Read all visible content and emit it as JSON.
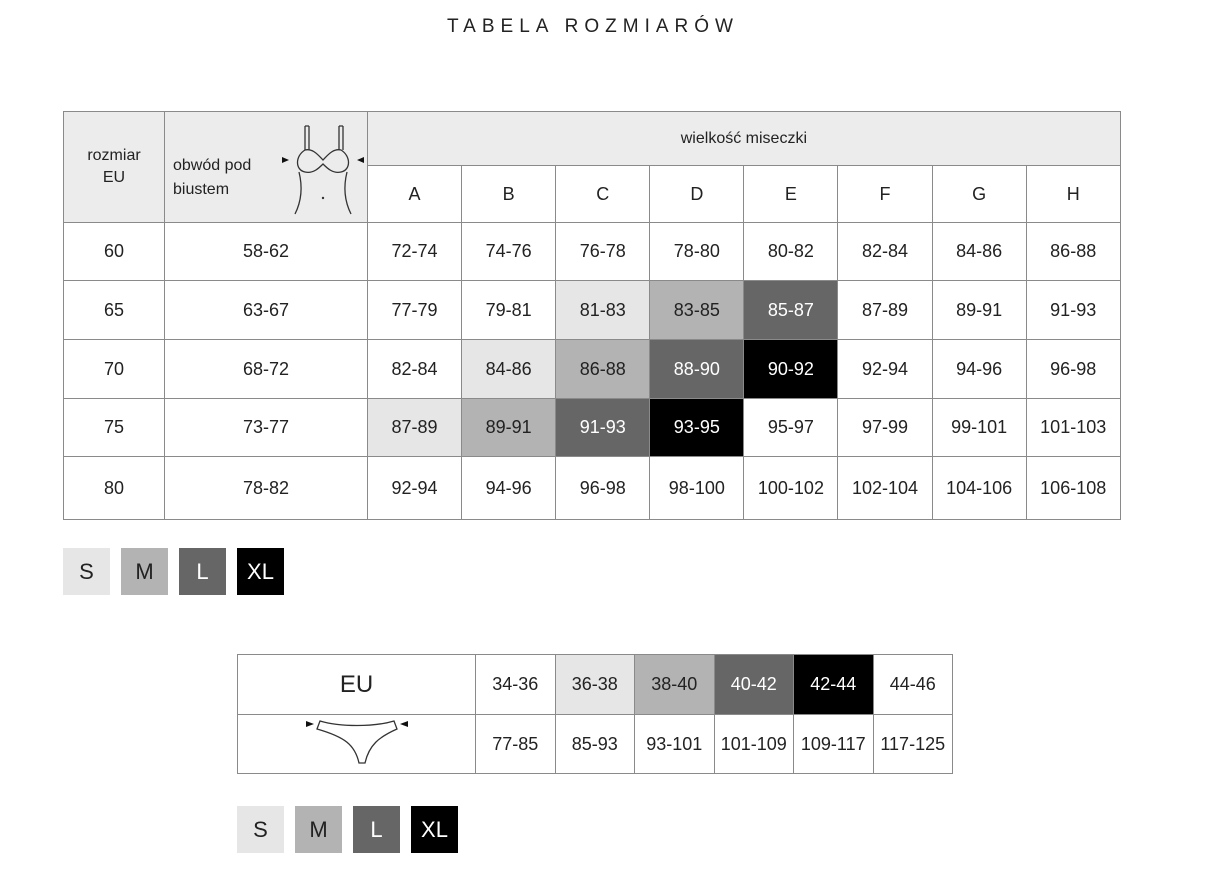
{
  "title": "TABELA ROZMIARÓW",
  "colors": {
    "S": "#e6e6e6",
    "M": "#b3b3b3",
    "L": "#666666",
    "XL": "#000000"
  },
  "bra_table": {
    "col_size": "rozmiar EU",
    "col_underbust": "obwód pod biustem",
    "cup_header": "wielkość miseczki",
    "cups": [
      "A",
      "B",
      "C",
      "D",
      "E",
      "F",
      "G",
      "H"
    ],
    "rows": [
      {
        "size": "60",
        "underbust": "58-62",
        "values": [
          "72-74",
          "74-76",
          "76-78",
          "78-80",
          "80-82",
          "82-84",
          "84-86",
          "86-88"
        ],
        "shade": [
          "",
          "",
          "",
          "",
          "",
          "",
          "",
          ""
        ]
      },
      {
        "size": "65",
        "underbust": "63-67",
        "values": [
          "77-79",
          "79-81",
          "81-83",
          "83-85",
          "85-87",
          "87-89",
          "89-91",
          "91-93"
        ],
        "shade": [
          "",
          "",
          "S",
          "M",
          "L",
          "",
          "",
          ""
        ]
      },
      {
        "size": "70",
        "underbust": "68-72",
        "values": [
          "82-84",
          "84-86",
          "86-88",
          "88-90",
          "90-92",
          "92-94",
          "94-96",
          "96-98"
        ],
        "shade": [
          "",
          "S",
          "M",
          "L",
          "XL",
          "",
          "",
          ""
        ]
      },
      {
        "size": "75",
        "underbust": "73-77",
        "values": [
          "87-89",
          "89-91",
          "91-93",
          "93-95",
          "95-97",
          "97-99",
          "99-101",
          "101-103"
        ],
        "shade": [
          "S",
          "M",
          "L",
          "XL",
          "",
          "",
          "",
          ""
        ]
      },
      {
        "size": "80",
        "underbust": "78-82",
        "values": [
          "92-94",
          "94-96",
          "96-98",
          "98-100",
          "100-102",
          "102-104",
          "104-106",
          "106-108"
        ],
        "shade": [
          "",
          "",
          "",
          "",
          "",
          "",
          "",
          ""
        ]
      }
    ]
  },
  "legend": [
    "S",
    "M",
    "L",
    "XL"
  ],
  "panty_table": {
    "eu_label": "EU",
    "eu": [
      "34-36",
      "36-38",
      "38-40",
      "40-42",
      "42-44",
      "44-46"
    ],
    "hips": [
      "77-85",
      "85-93",
      "93-101",
      "101-109",
      "109-117",
      "117-125"
    ],
    "shade": [
      "",
      "S",
      "M",
      "L",
      "XL",
      ""
    ]
  }
}
